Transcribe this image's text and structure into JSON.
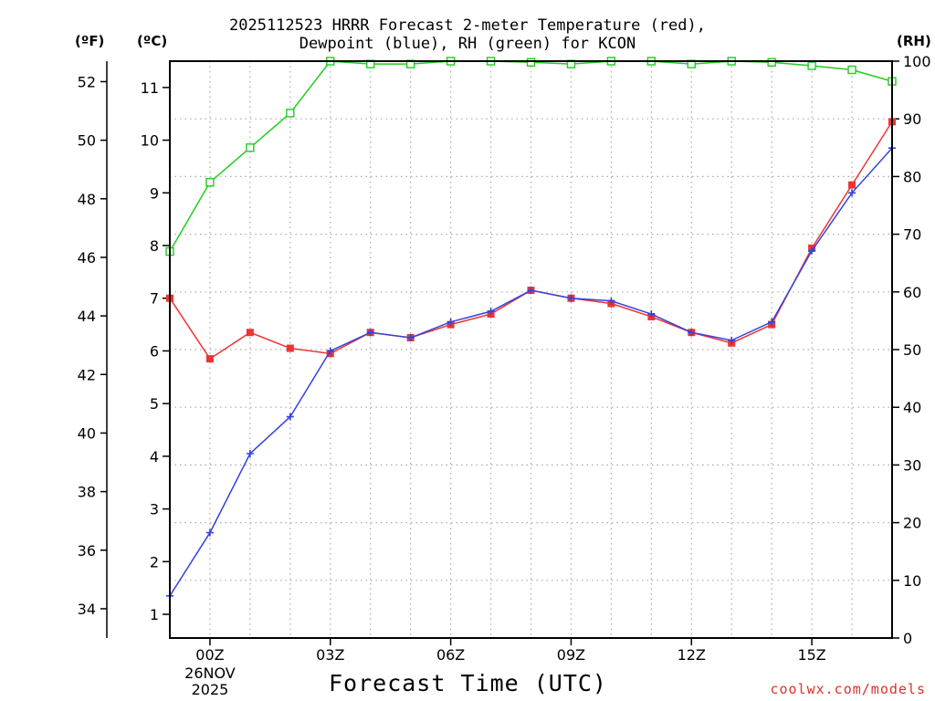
{
  "title": {
    "line1": "2025112523 HRRR Forecast 2-meter Temperature (red),",
    "line2": "Dewpoint (blue), RH (green) for KCON"
  },
  "units": {
    "fahrenheit": "(ºF)",
    "celsius": "(ºC)",
    "rh": "(RH)"
  },
  "credit": "coolwx.com/models",
  "colors": {
    "temperature": "#ee3333",
    "dewpoint": "#3344dd",
    "rh": "#22cc22",
    "grid": "#aaaaaa"
  },
  "chart_data": {
    "type": "line",
    "title": "2025112523 HRRR Forecast 2-meter Temperature (red), Dewpoint (blue), RH (green) for KCON",
    "xlabel": "Forecast Time (UTC)",
    "x": [
      -1,
      0,
      1,
      2,
      3,
      4,
      5,
      6,
      7,
      8,
      9,
      10,
      11,
      12,
      13,
      14,
      15,
      16,
      17
    ],
    "xlim": [
      -1,
      17
    ],
    "x_ticks": [
      {
        "x": 0,
        "label": "00Z",
        "date": "26NOV",
        "year": "2025"
      },
      {
        "x": 3,
        "label": "03Z"
      },
      {
        "x": 6,
        "label": "06Z"
      },
      {
        "x": 9,
        "label": "09Z"
      },
      {
        "x": 12,
        "label": "12Z"
      },
      {
        "x": 15,
        "label": "15Z"
      }
    ],
    "y_left_celsius": {
      "label": "(ºC)",
      "ylim": [
        0.55,
        11.5
      ],
      "ticks": [
        1,
        2,
        3,
        4,
        5,
        6,
        7,
        8,
        9,
        10,
        11
      ]
    },
    "y_left_fahrenheit": {
      "label": "(ºF)",
      "ylim": [
        33.0,
        52.7
      ],
      "ticks": [
        34,
        36,
        38,
        40,
        42,
        44,
        46,
        48,
        50,
        52
      ]
    },
    "y_right_rh": {
      "label": "(RH)",
      "ylim": [
        0,
        100
      ],
      "ticks": [
        0,
        10,
        20,
        30,
        40,
        50,
        60,
        70,
        80,
        90,
        100
      ]
    },
    "series": [
      {
        "name": "Temperature",
        "axis": "celsius",
        "color": "#ee3333",
        "marker": "filled-square",
        "values": [
          7.0,
          5.85,
          6.35,
          6.05,
          5.95,
          6.35,
          6.25,
          6.5,
          6.7,
          7.15,
          7.0,
          6.9,
          6.65,
          6.35,
          6.15,
          6.5,
          7.95,
          9.15,
          10.35
        ]
      },
      {
        "name": "Dewpoint",
        "axis": "celsius",
        "color": "#3344dd",
        "marker": "plus",
        "values": [
          1.35,
          2.55,
          4.05,
          4.75,
          6.0,
          6.35,
          6.25,
          6.55,
          6.75,
          7.15,
          7.0,
          6.95,
          6.7,
          6.35,
          6.2,
          6.55,
          7.9,
          9.0,
          9.85
        ]
      },
      {
        "name": "RH",
        "axis": "rh",
        "color": "#22cc22",
        "marker": "open-square",
        "values": [
          67,
          79,
          85,
          91,
          100,
          99.5,
          99.5,
          100,
          100,
          99.8,
          99.5,
          100,
          100,
          99.5,
          100,
          99.8,
          99.2,
          98.5,
          96.5
        ]
      }
    ]
  }
}
